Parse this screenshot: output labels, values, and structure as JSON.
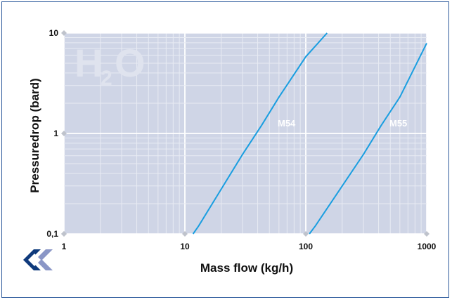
{
  "chart_data": {
    "type": "line",
    "watermark": {
      "main": "H",
      "sub": "2",
      "tail": "O"
    },
    "xlabel": "Mass flow (kg/h)",
    "ylabel": "Pressuredrop (bard)",
    "x_scale": "log",
    "y_scale": "log",
    "xlim": [
      1,
      1000
    ],
    "ylim": [
      0.1,
      10
    ],
    "x_ticks": [
      {
        "value": 1,
        "label": "1"
      },
      {
        "value": 10,
        "label": "10"
      },
      {
        "value": 100,
        "label": "100"
      },
      {
        "value": 1000,
        "label": "1000"
      }
    ],
    "y_ticks": [
      {
        "value": 0.1,
        "label": "0,1"
      },
      {
        "value": 1,
        "label": "1"
      },
      {
        "value": 10,
        "label": "10"
      }
    ],
    "grid": true,
    "series": [
      {
        "name": "M54",
        "color": "#1a9ee0",
        "points": [
          [
            11.7,
            0.1
          ],
          [
            13,
            0.12
          ],
          [
            20,
            0.28
          ],
          [
            30,
            0.62
          ],
          [
            43,
            1.2
          ],
          [
            60,
            2.3
          ],
          [
            100,
            5.8
          ],
          [
            150,
            10
          ]
        ]
      },
      {
        "name": "M55",
        "color": "#1a9ee0",
        "points": [
          [
            107,
            0.1
          ],
          [
            120,
            0.12
          ],
          [
            200,
            0.3
          ],
          [
            300,
            0.62
          ],
          [
            420,
            1.2
          ],
          [
            600,
            2.3
          ],
          [
            1000,
            7.9
          ]
        ]
      }
    ]
  },
  "colors": {
    "plot_background": "#cfd5e6",
    "major_grid": "#ffffff",
    "minor_grid": "#e8ebf3",
    "frame_border": "#2d5a9c"
  },
  "logo": {
    "icon": "double-chevron-logo-icon"
  }
}
